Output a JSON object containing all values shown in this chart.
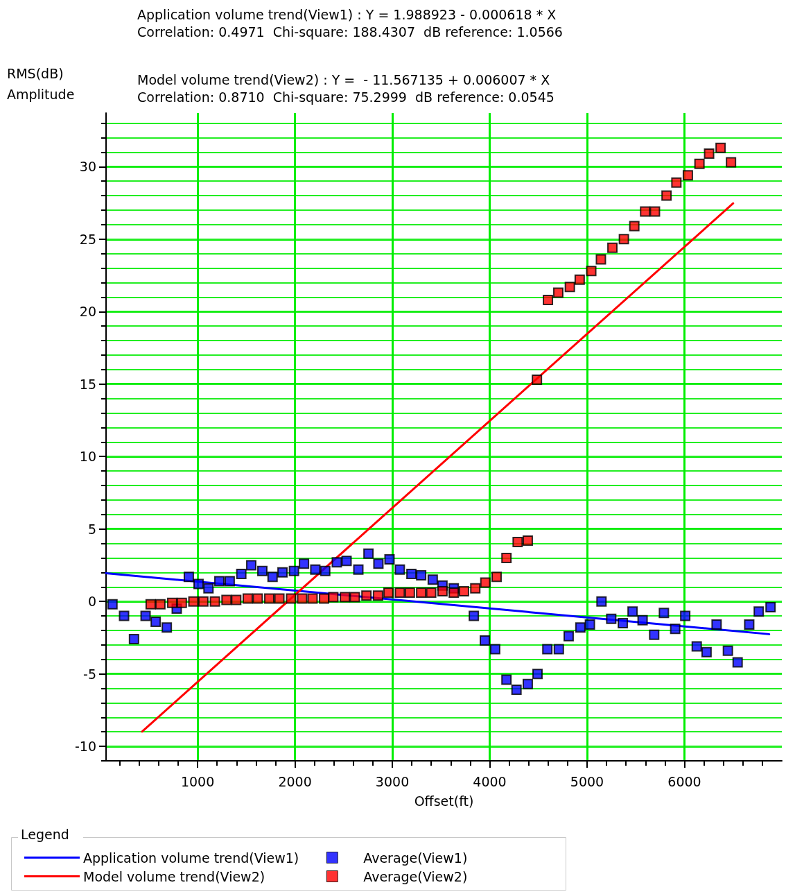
{
  "chart_data": {
    "type": "scatter",
    "title": "Application volume trend(View1) : Y = 1.988923 - 0.000618 * X",
    "subtitle": "Correlation: 0.4971  Chi-square: 188.4307  dB reference: 1.0566",
    "annotations": [
      "Model volume trend(View2) : Y =  - 11.567135 + 0.006007 * X",
      "Correlation: 0.8710  Chi-square: 75.2999  dB reference: 0.0545"
    ],
    "xlabel": "Offset(ft)",
    "ylabel": "RMS(dB)\nAmplitude",
    "legend_title": "Legend",
    "xlim": [
      60,
      7000
    ],
    "ylim": [
      -11,
      33.7
    ],
    "xticks": [
      {
        "value": 200,
        "label": null
      },
      {
        "value": 400,
        "label": null
      },
      {
        "value": 600,
        "label": null
      },
      {
        "value": 800,
        "label": null
      },
      1000,
      {
        "value": 1200,
        "label": null
      },
      {
        "value": 1400,
        "label": null
      },
      {
        "value": 1600,
        "label": null
      },
      {
        "value": 1800,
        "label": null
      },
      2000,
      {
        "value": 2200,
        "label": null
      },
      {
        "value": 2400,
        "label": null
      },
      {
        "value": 2600,
        "label": null
      },
      {
        "value": 2800,
        "label": null
      },
      3000,
      {
        "value": 3200,
        "label": null
      },
      {
        "value": 3400,
        "label": null
      },
      {
        "value": 3600,
        "label": null
      },
      {
        "value": 3800,
        "label": null
      },
      4000,
      {
        "value": 4200,
        "label": null
      },
      {
        "value": 4400,
        "label": null
      },
      {
        "value": 4600,
        "label": null
      },
      {
        "value": 4800,
        "label": null
      },
      5000,
      {
        "value": 5200,
        "label": null
      },
      {
        "value": 5400,
        "label": null
      },
      {
        "value": 5600,
        "label": null
      },
      {
        "value": 5800,
        "label": null
      },
      6000,
      {
        "value": 6200,
        "label": null
      },
      {
        "value": 6400,
        "label": null
      },
      {
        "value": 6600,
        "label": null
      },
      {
        "value": 6800,
        "label": null
      }
    ],
    "yticks": [
      {
        "value": -11,
        "label": null
      },
      -10,
      {
        "value": -9,
        "label": null
      },
      {
        "value": -8,
        "label": null
      },
      {
        "value": -7,
        "label": null
      },
      {
        "value": -6,
        "label": null
      },
      -5,
      {
        "value": -4,
        "label": null
      },
      {
        "value": -3,
        "label": null
      },
      {
        "value": -2,
        "label": null
      },
      {
        "value": -1,
        "label": null
      },
      0,
      {
        "value": 1,
        "label": null
      },
      {
        "value": 2,
        "label": null
      },
      {
        "value": 3,
        "label": null
      },
      {
        "value": 4,
        "label": null
      },
      5,
      {
        "value": 6,
        "label": null
      },
      {
        "value": 7,
        "label": null
      },
      {
        "value": 8,
        "label": null
      },
      {
        "value": 9,
        "label": null
      },
      10,
      {
        "value": 11,
        "label": null
      },
      {
        "value": 12,
        "label": null
      },
      {
        "value": 13,
        "label": null
      },
      {
        "value": 14,
        "label": null
      },
      15,
      {
        "value": 16,
        "label": null
      },
      {
        "value": 17,
        "label": null
      },
      {
        "value": 18,
        "label": null
      },
      {
        "value": 19,
        "label": null
      },
      20,
      {
        "value": 21,
        "label": null
      },
      {
        "value": 22,
        "label": null
      },
      {
        "value": 23,
        "label": null
      },
      {
        "value": 24,
        "label": null
      },
      25,
      {
        "value": 26,
        "label": null
      },
      {
        "value": 27,
        "label": null
      },
      {
        "value": 28,
        "label": null
      },
      {
        "value": 29,
        "label": null
      },
      30,
      {
        "value": 31,
        "label": null
      },
      {
        "value": 32,
        "label": null
      },
      {
        "value": 33,
        "label": null
      }
    ],
    "grid": true,
    "legend": "bottom left",
    "series": [
      {
        "name": "Application volume trend(View1)",
        "type": "line",
        "marker": "none",
        "line_style": "solid",
        "color": "#0000ff",
        "x": [
          60,
          6870
        ],
        "values": [
          1.95,
          -2.26
        ]
      },
      {
        "name": "Model volume trend(View2)",
        "type": "line",
        "marker": "none",
        "line_style": "solid",
        "color": "#ff0000",
        "x": [
          430,
          6500
        ],
        "values": [
          -8.98,
          27.47
        ]
      },
      {
        "name": "Average(View1)",
        "type": "scatter",
        "marker": "square",
        "color": "#0000ff",
        "x": [
          126,
          245,
          347,
          466,
          570,
          684,
          786,
          910,
          1010,
          1112,
          1223,
          1330,
          1449,
          1551,
          1665,
          1770,
          1872,
          1990,
          2093,
          2209,
          2311,
          2430,
          2530,
          2651,
          2755,
          2857,
          2971,
          3077,
          3196,
          3296,
          3415,
          3515,
          3631,
          3837,
          3950,
          4056,
          4172,
          4275,
          4391,
          4491,
          4592,
          4710,
          4811,
          4931,
          5029,
          5148,
          5248,
          5367,
          5467,
          5570,
          5689,
          5789,
          5905,
          6008,
          6126,
          6227,
          6330,
          6446,
          6546,
          6665,
          6763,
          6884
        ],
        "values": [
          -0.2,
          -1.0,
          -2.6,
          -1.0,
          -1.4,
          -1.8,
          -0.5,
          1.7,
          1.2,
          0.9,
          1.4,
          1.4,
          1.9,
          2.5,
          2.1,
          1.7,
          2.0,
          2.1,
          2.6,
          2.2,
          2.1,
          2.7,
          2.8,
          2.2,
          3.3,
          2.6,
          2.9,
          2.2,
          1.9,
          1.8,
          1.5,
          1.1,
          0.9,
          -1.0,
          -2.7,
          -3.3,
          -5.4,
          -6.1,
          -5.7,
          -5.0,
          -3.3,
          -3.3,
          -2.4,
          -1.8,
          -1.6,
          0.0,
          -1.2,
          -1.5,
          -0.7,
          -1.3,
          -2.3,
          -0.8,
          -1.9,
          -1.0,
          -3.1,
          -3.5,
          -1.6,
          -3.4,
          -4.2,
          -1.6,
          -0.7,
          -0.4
        ]
      },
      {
        "name": "Average(View2)",
        "type": "scatter",
        "marker": "square",
        "color": "#ff0000",
        "x": [
          518,
          618,
          739,
          838,
          957,
          1059,
          1178,
          1297,
          1397,
          1515,
          1618,
          1736,
          1840,
          1960,
          2074,
          2181,
          2299,
          2394,
          2513,
          2615,
          2734,
          2853,
          2960,
          3077,
          3180,
          3296,
          3399,
          3515,
          3631,
          3736,
          3852,
          3955,
          4071,
          4172,
          4287,
          4391,
          4485,
          4598,
          4704,
          4823,
          4924,
          5043,
          5142,
          5260,
          5378,
          5485,
          5596,
          5697,
          5816,
          5917,
          6035,
          6154,
          6253,
          6371,
          6478
        ],
        "values": [
          -0.2,
          -0.2,
          -0.1,
          -0.1,
          0.0,
          0.0,
          0.0,
          0.1,
          0.1,
          0.2,
          0.2,
          0.2,
          0.2,
          0.2,
          0.2,
          0.2,
          0.2,
          0.3,
          0.3,
          0.3,
          0.4,
          0.4,
          0.6,
          0.6,
          0.6,
          0.6,
          0.6,
          0.7,
          0.6,
          0.7,
          0.9,
          1.3,
          1.7,
          3.0,
          4.1,
          4.2,
          15.3,
          20.8,
          21.3,
          21.7,
          22.2,
          22.8,
          23.6,
          24.4,
          25.0,
          25.9,
          26.9,
          26.9,
          28.0,
          28.9,
          29.4,
          30.2,
          30.9,
          31.3,
          30.3
        ]
      }
    ]
  }
}
